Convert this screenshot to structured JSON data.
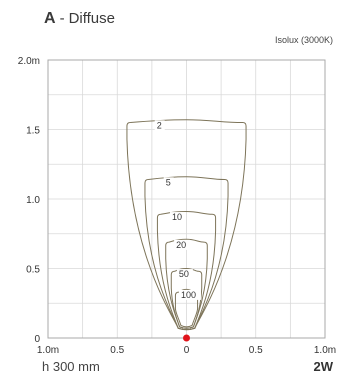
{
  "header": {
    "letter": "A",
    "separator": "-",
    "name": "Diffuse",
    "subtitle": "Isolux (3000K)"
  },
  "footer": {
    "height_label": "h 300 mm",
    "power_label": "2W"
  },
  "colors": {
    "curve": "#7d7459",
    "grid": "#d9d9d9",
    "frame": "#a9a9a9",
    "source_marker": "#e0141b"
  },
  "chart_data": {
    "type": "contour",
    "title": "",
    "xlim": [
      -1.0,
      1.0
    ],
    "ylim": [
      0,
      2.0
    ],
    "x_ticks": [
      {
        "value": -1.0,
        "label": "1.0m"
      },
      {
        "value": -0.5,
        "label": "0.5"
      },
      {
        "value": 0,
        "label": "0"
      },
      {
        "value": 0.5,
        "label": "0.5"
      },
      {
        "value": 1.0,
        "label": "1.0m"
      }
    ],
    "y_ticks": [
      {
        "value": 0,
        "label": "0"
      },
      {
        "value": 0.5,
        "label": "0.5"
      },
      {
        "value": 1.0,
        "label": "1.0"
      },
      {
        "value": 1.5,
        "label": "1.5"
      },
      {
        "value": 2.0,
        "label": "2.0m"
      }
    ],
    "grid": true,
    "source": {
      "x": 0,
      "y": 0
    },
    "isolines": [
      {
        "label": "2",
        "width": 0.43,
        "top": 1.57,
        "bottom_width": 0.06,
        "bottom": 0.07
      },
      {
        "label": "5",
        "width": 0.3,
        "top": 1.16,
        "bottom_width": 0.06,
        "bottom": 0.07
      },
      {
        "label": "10",
        "width": 0.21,
        "top": 0.91,
        "bottom_width": 0.06,
        "bottom": 0.07
      },
      {
        "label": "20",
        "width": 0.15,
        "top": 0.71,
        "bottom_width": 0.05,
        "bottom": 0.08
      },
      {
        "label": "50",
        "width": 0.11,
        "top": 0.5,
        "bottom_width": 0.05,
        "bottom": 0.08
      },
      {
        "label": "100",
        "width": 0.08,
        "top": 0.35,
        "bottom_width": 0.04,
        "bottom": 0.09
      }
    ]
  }
}
